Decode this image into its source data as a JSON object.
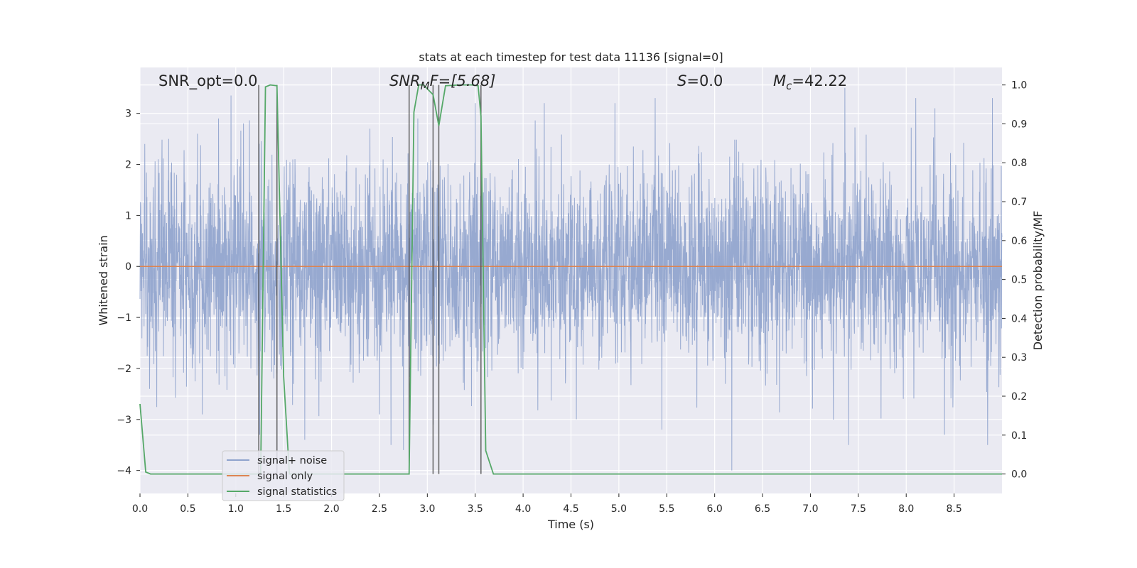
{
  "chart_data": {
    "type": "line",
    "title": "stats at each timestep for test data 11136 [signal=0]",
    "xlabel": "Time (s)",
    "ylabel": "Whitened strain",
    "ylabel_right": "Detection probability/MF",
    "xlim": [
      0.0,
      9.0
    ],
    "ylim": [
      -4.45,
      3.9
    ],
    "ylim_right": [
      -0.05,
      1.045
    ],
    "x_ticks": [
      "0.0",
      "0.5",
      "1.0",
      "1.5",
      "2.0",
      "2.5",
      "3.0",
      "3.5",
      "4.0",
      "4.5",
      "5.0",
      "5.5",
      "6.0",
      "6.5",
      "7.0",
      "7.5",
      "8.0",
      "8.5"
    ],
    "y_ticks": [
      "3",
      "2",
      "1",
      "0",
      "−1",
      "−2",
      "−3",
      "−4"
    ],
    "y_ticks_right": [
      "1.0",
      "0.9",
      "0.8",
      "0.7",
      "0.6",
      "0.5",
      "0.4",
      "0.3",
      "0.2",
      "0.1",
      "0.0"
    ],
    "grid": true,
    "legend_position": "lower-left",
    "annotations": {
      "snr_opt": "SNR_opt=0.0",
      "snr_mf_main": "SNR",
      "snr_mf_sub": "M",
      "snr_mf_rest": "F=[5.68]",
      "s_main": "S",
      "s_rest": "=0.0",
      "mc_main": "M",
      "mc_sub": "c",
      "mc_rest": "=42.22"
    },
    "vertical_markers": [
      1.24,
      1.43,
      2.81,
      3.06,
      3.12,
      3.56
    ],
    "series": [
      {
        "name": "signal+ noise",
        "axis": "left",
        "color": "#8fa3cd",
        "envelope": "noise with typical amplitude ~1.5, peaks reaching about ±3.5",
        "peak_up": [
          [
            0.05,
            2.4
          ],
          [
            0.3,
            2.5
          ],
          [
            0.6,
            2.6
          ],
          [
            0.82,
            2.9
          ],
          [
            0.95,
            3.35
          ],
          [
            1.08,
            2.8
          ],
          [
            2.4,
            2.7
          ],
          [
            2.9,
            2.9
          ],
          [
            3.5,
            3.2
          ],
          [
            4.22,
            3.2
          ],
          [
            4.96,
            3.2
          ],
          [
            5.38,
            3.3
          ],
          [
            7.36,
            3.5
          ],
          [
            8.1,
            3.3
          ],
          [
            8.3,
            3.1
          ],
          [
            8.9,
            3.3
          ]
        ],
        "peak_down": [
          [
            0.1,
            -2.4
          ],
          [
            0.65,
            -2.9
          ],
          [
            1.25,
            -3.3
          ],
          [
            1.72,
            -3.4
          ],
          [
            2.5,
            -2.9
          ],
          [
            2.62,
            -3.5
          ],
          [
            2.75,
            -3.6
          ],
          [
            5.45,
            -3.2
          ],
          [
            6.18,
            -4.0
          ],
          [
            7.4,
            -3.5
          ],
          [
            8.4,
            -3.3
          ],
          [
            8.85,
            -3.5
          ]
        ]
      },
      {
        "name": "signal only",
        "axis": "left",
        "color": "#dd8452",
        "x": [
          0.0,
          9.0
        ],
        "y": [
          0.0,
          0.0
        ]
      },
      {
        "name": "signal statistics",
        "axis": "right",
        "color": "#55a868",
        "x": [
          0.0,
          0.06,
          0.11,
          1.24,
          1.26,
          1.31,
          1.36,
          1.43,
          1.5,
          1.56,
          2.81,
          2.86,
          2.91,
          2.96,
          3.06,
          3.12,
          3.19,
          3.34,
          3.46,
          3.53,
          3.56,
          3.61,
          3.69,
          9.0
        ],
        "y": [
          0.18,
          0.005,
          0.0,
          0.0,
          0.0,
          0.995,
          1.0,
          0.998,
          0.25,
          0.0,
          0.0,
          0.93,
          1.0,
          1.0,
          0.975,
          0.895,
          0.998,
          1.0,
          1.0,
          0.998,
          0.92,
          0.06,
          0.0,
          0.0
        ]
      }
    ]
  }
}
